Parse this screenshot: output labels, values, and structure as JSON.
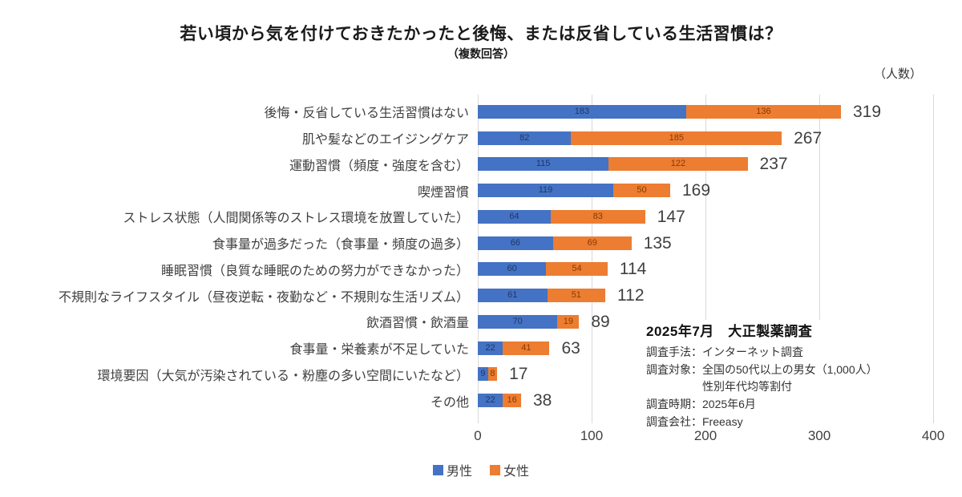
{
  "title": "若い頃から気を付けておきたかったと後悔、または反省している生活習慣は？",
  "subtitle": "（複数回答）",
  "unit_label": "（人数）",
  "chart_data": {
    "type": "bar",
    "orientation": "horizontal",
    "stacked": true,
    "title": "若い頃から気を付けておきたかったと後悔、または反省している生活習慣は？（複数回答）",
    "xlabel": "（人数）",
    "xlim": [
      0,
      400
    ],
    "x_ticks": [
      0,
      100,
      200,
      300,
      400
    ],
    "grid": true,
    "legend_position": "bottom",
    "categories": [
      "後悔・反省している生活習慣はない",
      "肌や髪などのエイジングケア",
      "運動習慣（頻度・強度を含む）",
      "喫煙習慣",
      "ストレス状態（人間関係等のストレス環境を放置していた）",
      "食事量が過多だった（食事量・頻度の過多）",
      "睡眠習慣（良質な睡眠のための努力ができなかった）",
      "不規則なライフスタイル（昼夜逆転・夜勤など・不規則な生活リズム）",
      "飲酒習慣・飲酒量",
      "食事量・栄養素が不足していた",
      "環境要因（大気が汚染されている・粉塵の多い空間にいたなど）",
      "その他"
    ],
    "series": [
      {
        "name": "男性",
        "color": "#4472C4",
        "values": [
          183,
          82,
          115,
          119,
          64,
          66,
          60,
          61,
          70,
          22,
          9,
          22
        ]
      },
      {
        "name": "女性",
        "color": "#ED7D31",
        "values": [
          136,
          185,
          122,
          50,
          83,
          69,
          54,
          51,
          19,
          41,
          8,
          16
        ]
      }
    ],
    "totals": [
      319,
      267,
      237,
      169,
      147,
      135,
      114,
      112,
      89,
      63,
      17,
      38
    ]
  },
  "annotation": {
    "title": "2025年7月　大正製薬調査",
    "lines": [
      {
        "text": "調査手法：インターネット調査",
        "continuation": false
      },
      {
        "text": "調査対象：全国の50代以上の男女（1,000人）",
        "continuation": false
      },
      {
        "text": "性別年代均等割付",
        "continuation": true
      },
      {
        "text": "調査時期：2025年6月",
        "continuation": false
      },
      {
        "text": "調査会社：Freeasy",
        "continuation": false
      }
    ]
  },
  "colors": {
    "male": "#4472C4",
    "female": "#ED7D31",
    "gridline": "#d9d9d9",
    "male_label": "#1f3864",
    "female_label": "#833c00"
  }
}
